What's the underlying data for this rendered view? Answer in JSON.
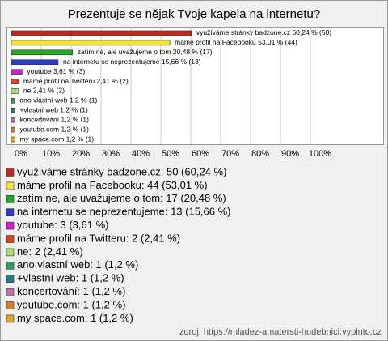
{
  "chart_data": {
    "type": "hbar",
    "title": "Prezentuje se nějak Tvoje kapela na internetu?",
    "categories": [
      "využíváme stránky badzone.cz",
      "máme profil na Facebooku",
      "zatím ne, ale uvažujeme o tom",
      "na internetu se neprezentujeme",
      "youtube",
      "máme profil na Twitteru",
      "ne",
      "ano vlastní web",
      "+vlastní web",
      "koncertování",
      "youtube.com",
      "my space.com"
    ],
    "values": [
      60.24,
      53.01,
      20.48,
      15.66,
      3.61,
      2.41,
      2.41,
      1.2,
      1.2,
      1.2,
      1.2,
      1.2
    ],
    "value_labels": [
      "využíváme stránky badzone.cz 60,24 % (50)",
      "máme profil na Facebooku 53,01 % (44)",
      "zatím ne, ale uvažujeme o tom 20,48 % (17)",
      "na internetu se neprezentujeme 15,66 % (13)",
      "youtube 3,61 % (3)",
      "máme profil na Twitteru 2,41 % (2)",
      "ne 2,41 % (2)",
      "ano vlastní web 1,2 % (1)",
      "+vlastní web 1,2 % (1)",
      "koncertování 1,2 % (1)",
      "youtube.com 1,2 % (1)",
      "my space.com 1,2 % (1)"
    ],
    "legend": [
      "využíváme stránky badzone.cz: 50 (60,24 %)",
      "máme profil na Facebooku: 44 (53,01 %)",
      "zatím ne, ale uvažujeme o tom: 17 (20,48 %)",
      "na internetu se neprezentujeme: 13 (15,66 %)",
      "youtube: 3 (3,61 %)",
      "máme profil na Twitteru: 2 (2,41 %)",
      "ne: 2 (2,41 %)",
      "ano vlastní web: 1 (1,2 %)",
      "+vlastní web: 1 (1,2 %)",
      "koncertování: 1 (1,2 %)",
      "youtube.com: 1 (1,2 %)",
      "my space.com: 1 (1,2 %)"
    ],
    "colors": [
      "#c0281c",
      "#f2e23a",
      "#22aa22",
      "#2a3ccc",
      "#cc22cc",
      "#e0401c",
      "#a6e070",
      "#2e9e60",
      "#1e7e86",
      "#c070a8",
      "#e07a1c",
      "#e0aa20"
    ],
    "xlim": [
      0,
      100
    ],
    "xticks": [
      {
        "value": 0,
        "label": "0%"
      },
      {
        "value": 10,
        "label": "10%"
      },
      {
        "value": 20,
        "label": "20%"
      },
      {
        "value": 30,
        "label": "30%"
      },
      {
        "value": 40,
        "label": "40%"
      },
      {
        "value": 50,
        "label": "50%"
      },
      {
        "value": 60,
        "label": "60%"
      },
      {
        "value": 70,
        "label": "70%"
      },
      {
        "value": 80,
        "label": "80%"
      },
      {
        "value": 90,
        "label": "90%"
      },
      {
        "value": 100,
        "label": "100%"
      }
    ],
    "grid": true,
    "source": "zdroj: https://mladez-amatersti-hudebnici.vyplnto.cz"
  }
}
